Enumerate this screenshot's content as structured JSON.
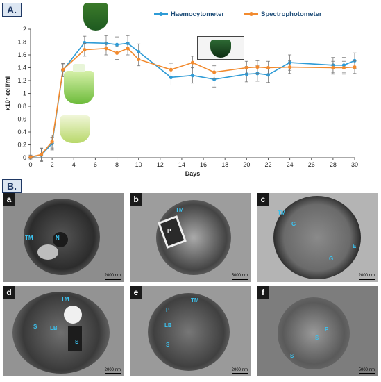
{
  "panel_a_label": "A.",
  "panel_b_label": "B.",
  "chart_data": {
    "type": "line",
    "xlabel": "Days",
    "ylabel": "x10⁷ cell/ml",
    "xlim": [
      0,
      30
    ],
    "ylim": [
      0,
      2
    ],
    "xticks": [
      0,
      2,
      4,
      6,
      8,
      10,
      12,
      14,
      16,
      18,
      20,
      22,
      24,
      26,
      28,
      30
    ],
    "yticks": [
      0,
      0.2,
      0.4,
      0.6,
      0.8,
      1,
      1.2,
      1.4,
      1.6,
      1.8,
      2
    ],
    "legend_placement": "top",
    "series": [
      {
        "name": "Haemocytometer",
        "color": "#2e9bd6",
        "x": [
          0,
          1,
          2,
          3,
          5,
          7,
          8,
          9,
          10,
          13,
          15,
          17,
          20,
          21,
          22,
          24,
          28,
          29,
          30
        ],
        "y": [
          0.01,
          0.04,
          0.22,
          1.36,
          1.79,
          1.78,
          1.76,
          1.78,
          1.65,
          1.25,
          1.28,
          1.22,
          1.3,
          1.31,
          1.29,
          1.48,
          1.44,
          1.44,
          1.51
        ],
        "err": [
          0.03,
          0.1,
          0.1,
          0.1,
          0.1,
          0.12,
          0.12,
          0.12,
          0.12,
          0.12,
          0.12,
          0.12,
          0.12,
          0.12,
          0.12,
          0.12,
          0.12,
          0.12,
          0.12
        ]
      },
      {
        "name": "Spectrophotometer",
        "color": "#f28a2e",
        "x": [
          0,
          1,
          2,
          3,
          5,
          7,
          8,
          9,
          10,
          13,
          15,
          17,
          20,
          21,
          22,
          24,
          28,
          29,
          30
        ],
        "y": [
          0.01,
          0.05,
          0.25,
          1.37,
          1.68,
          1.7,
          1.63,
          1.7,
          1.53,
          1.37,
          1.48,
          1.33,
          1.4,
          1.41,
          1.4,
          1.41,
          1.4,
          1.4,
          1.41
        ],
        "err": [
          0.03,
          0.1,
          0.1,
          0.1,
          0.1,
          0.1,
          0.1,
          0.1,
          0.1,
          0.1,
          0.1,
          0.1,
          0.1,
          0.1,
          0.1,
          0.1,
          0.1,
          0.1,
          0.1
        ]
      }
    ]
  },
  "micrographs": [
    {
      "tag": "a",
      "scale": "2000 nm",
      "labels": [
        "TM",
        "N"
      ]
    },
    {
      "tag": "b",
      "scale": "5000 nm",
      "labels": [
        "TM",
        "P"
      ]
    },
    {
      "tag": "c",
      "scale": "2000 nm",
      "labels": [
        "TM",
        "G",
        "E",
        "G"
      ]
    },
    {
      "tag": "d",
      "scale": "2000 nm",
      "labels": [
        "TM",
        "S",
        "LB",
        "S"
      ]
    },
    {
      "tag": "e",
      "scale": "2000 nm",
      "labels": [
        "TM",
        "P",
        "LB",
        "S"
      ]
    },
    {
      "tag": "f",
      "scale": "5000 nm",
      "labels": [
        "P",
        "S",
        "S"
      ]
    }
  ],
  "colors": {
    "cell_dark": "#2f2f2f",
    "cell_light": "#b8b8b8",
    "label": "#3cc3f0"
  }
}
